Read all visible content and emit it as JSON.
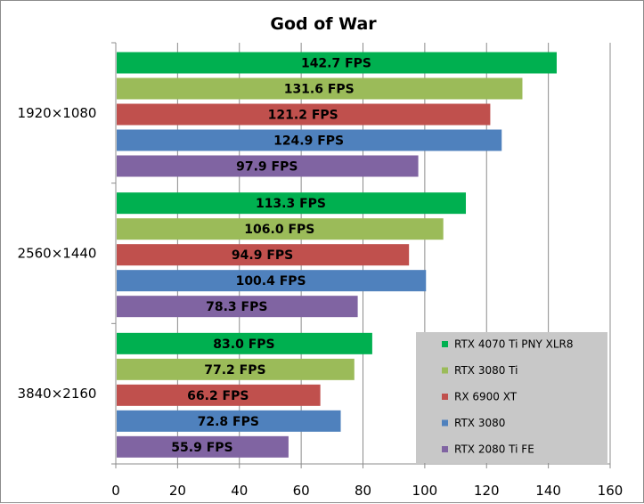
{
  "chart_data": {
    "type": "bar",
    "orientation": "horizontal",
    "title": "God of War",
    "categories": [
      "1920×1080",
      "2560×1440",
      "3840×2160"
    ],
    "series": [
      {
        "name": "RTX 4070 Ti PNY XLR8",
        "color": "#00b050",
        "values": [
          142.7,
          113.3,
          83.0
        ],
        "labels": [
          "142.7 FPS",
          "113.3 FPS",
          "83.0 FPS"
        ]
      },
      {
        "name": "RTX 3080 Ti",
        "color": "#9bbb59",
        "values": [
          131.6,
          106.0,
          77.2
        ],
        "labels": [
          "131.6 FPS",
          "106.0 FPS",
          "77.2 FPS"
        ]
      },
      {
        "name": "RX 6900 XT",
        "color": "#c0504d",
        "values": [
          121.2,
          94.9,
          66.2
        ],
        "labels": [
          "121.2 FPS",
          "94.9 FPS",
          "66.2 FPS"
        ]
      },
      {
        "name": "RTX 3080",
        "color": "#4f81bd",
        "values": [
          124.9,
          100.4,
          72.8
        ],
        "labels": [
          "124.9 FPS",
          "100.4 FPS",
          "72.8 FPS"
        ]
      },
      {
        "name": "RTX 2080 Ti FE",
        "color": "#8064a2",
        "values": [
          97.9,
          78.3,
          55.9
        ],
        "labels": [
          "97.9 FPS",
          "78.3 FPS",
          "55.9 FPS"
        ]
      }
    ],
    "xlim": [
      0,
      160
    ],
    "xticks": [
      0,
      20,
      40,
      60,
      80,
      100,
      120,
      140,
      160
    ],
    "grid": "vertical",
    "legend": "bottom-right",
    "legend_background": "#c8c8c8"
  }
}
